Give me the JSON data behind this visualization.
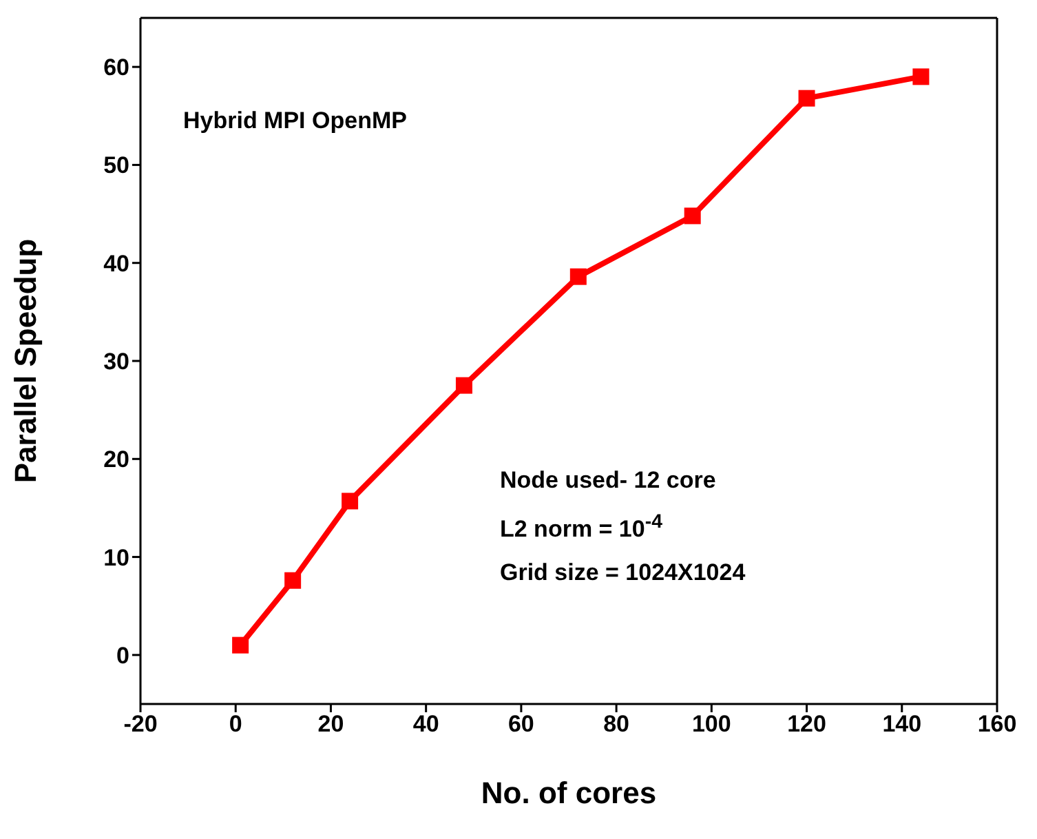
{
  "chart_data": {
    "type": "line",
    "title": "Hybrid MPI OpenMP",
    "xlabel": "No. of cores",
    "ylabel": "Parallel Speedup",
    "x": [
      1,
      12,
      24,
      48,
      72,
      96,
      120,
      144
    ],
    "series": [
      {
        "color": "#ff0000",
        "values": [
          1,
          7.6,
          15.7,
          27.5,
          38.6,
          44.8,
          56.8,
          59
        ]
      }
    ],
    "xlim": [
      -20,
      160
    ],
    "xticks": [
      -20,
      0,
      20,
      40,
      60,
      80,
      100,
      120,
      140,
      160
    ],
    "ylim": [
      -5,
      65
    ],
    "yticks": [
      0,
      10,
      20,
      30,
      40,
      50,
      60
    ],
    "annotations": [
      "Node used- 12 core",
      "L2 norm = 10$^{-4}$",
      "Grid size = 1024X1024"
    ],
    "marker": "square",
    "line_style": "solid"
  }
}
